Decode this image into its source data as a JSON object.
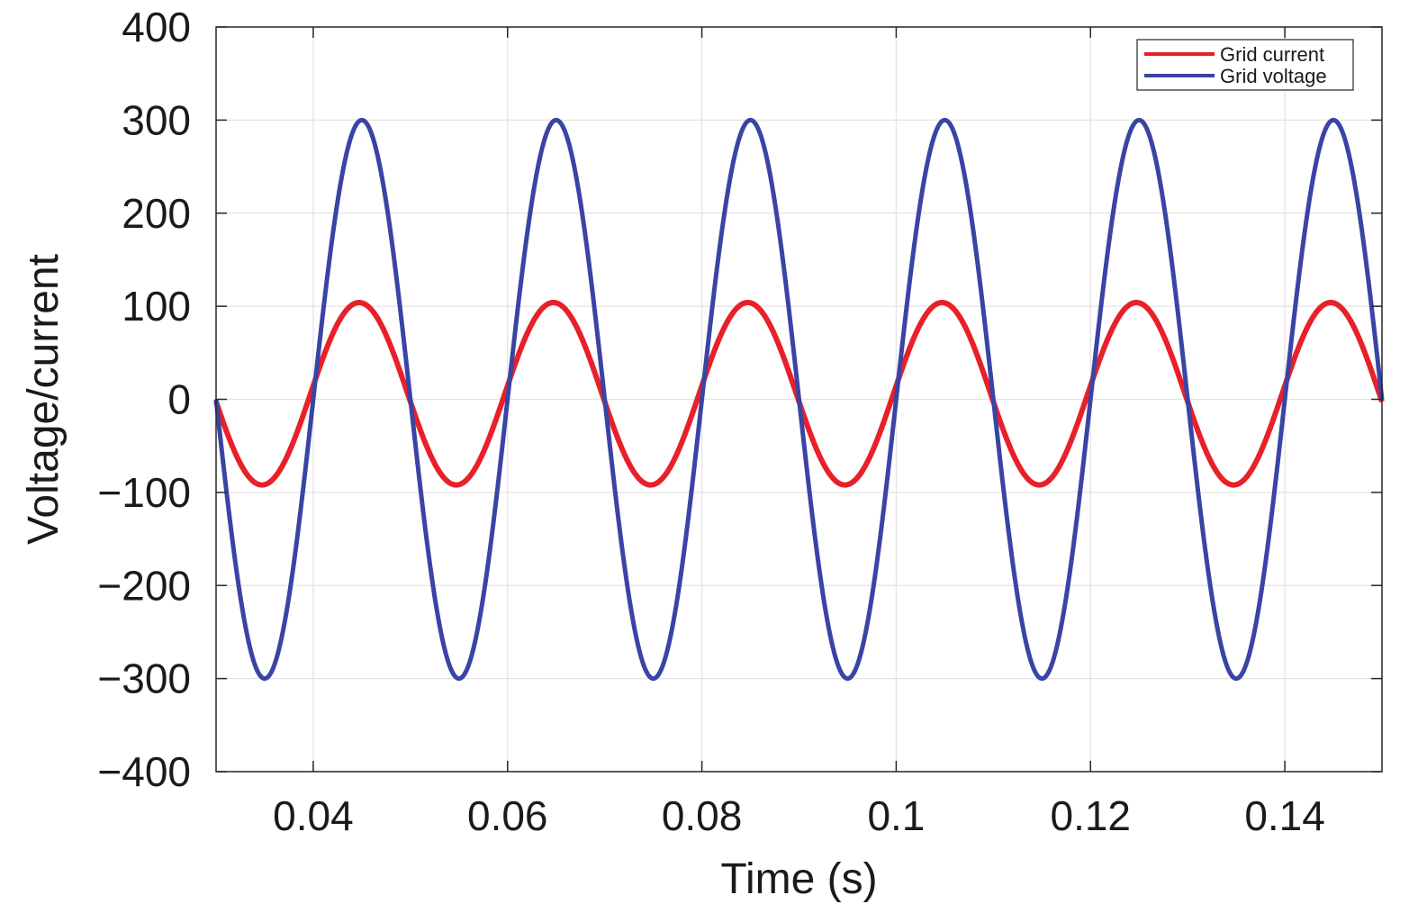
{
  "chart_data": {
    "type": "line",
    "xlabel": "Time (s)",
    "ylabel": "Voltage/current",
    "xlim": [
      0.03,
      0.15
    ],
    "ylim": [
      -400,
      400
    ],
    "xticks": [
      0.04,
      0.06,
      0.08,
      0.1,
      0.12,
      0.14
    ],
    "xtick_labels": [
      "0.04",
      "0.06",
      "0.08",
      "0.1",
      "0.12",
      "0.14"
    ],
    "yticks": [
      400,
      300,
      200,
      100,
      0,
      -100,
      -200,
      -300,
      -400
    ],
    "ytick_labels": [
      "400",
      "300",
      "200",
      "100",
      "0",
      "−100",
      "−200",
      "−300",
      "−400"
    ],
    "grid": true,
    "legend_position": "top-right",
    "frequency_hz": 50,
    "series": [
      {
        "name": "Grid current",
        "color": "#e8202a",
        "waveform": "sine",
        "amplitude": 98,
        "offset": 6,
        "phase_deg": 5,
        "points": [
          [
            0.03,
            30
          ],
          [
            0.0355,
            -92
          ],
          [
            0.0405,
            15
          ],
          [
            0.045,
            104
          ],
          [
            0.0555,
            -92
          ],
          [
            0.065,
            104
          ],
          [
            0.0755,
            -92
          ],
          [
            0.085,
            104
          ],
          [
            0.0955,
            -92
          ],
          [
            0.105,
            104
          ],
          [
            0.1155,
            -92
          ],
          [
            0.125,
            104
          ],
          [
            0.1355,
            -92
          ],
          [
            0.145,
            104
          ],
          [
            0.15,
            10
          ]
        ]
      },
      {
        "name": "Grid voltage",
        "color": "#3a44a4",
        "waveform": "sine",
        "amplitude": 300,
        "offset": 0,
        "phase_deg": 0,
        "points": [
          [
            0.03,
            0
          ],
          [
            0.035,
            -300
          ],
          [
            0.04,
            0
          ],
          [
            0.045,
            300
          ],
          [
            0.055,
            -300
          ],
          [
            0.065,
            300
          ],
          [
            0.075,
            -300
          ],
          [
            0.085,
            300
          ],
          [
            0.095,
            -300
          ],
          [
            0.105,
            300
          ],
          [
            0.115,
            -300
          ],
          [
            0.125,
            300
          ],
          [
            0.135,
            -300
          ],
          [
            0.145,
            300
          ],
          [
            0.15,
            0
          ]
        ]
      }
    ]
  }
}
